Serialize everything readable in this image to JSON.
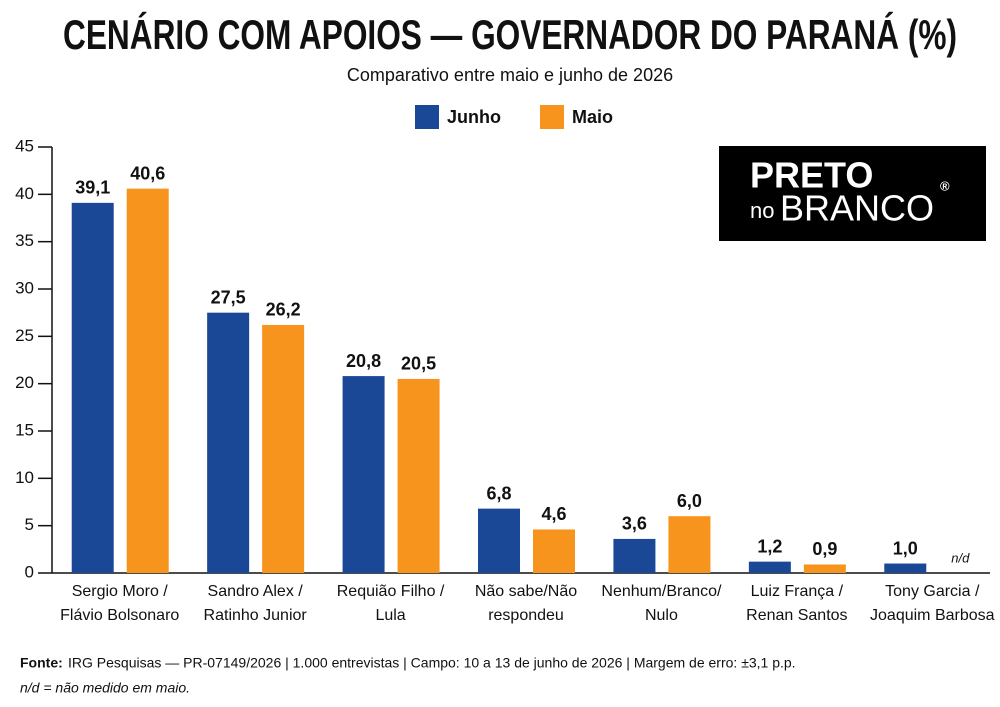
{
  "chart_data": {
    "type": "bar",
    "title": "CENÁRIO COM APOIOS — GOVERNADOR DO PARANÁ (%)",
    "subtitle": "Comparativo entre maio e junho de 2026",
    "categories": [
      [
        "Sergio Moro /",
        "Flávio Bolsonaro"
      ],
      [
        "Sandro Alex /",
        "Ratinho Junior"
      ],
      [
        "Requião Filho /",
        "Lula"
      ],
      [
        "Não sabe/Não",
        "respondeu"
      ],
      [
        "Nenhum/Branco/",
        "Nulo"
      ],
      [
        "Luiz França /",
        "Renan Santos"
      ],
      [
        "Tony Garcia /",
        "Joaquim Barbosa"
      ]
    ],
    "series": [
      {
        "name": "Junho",
        "color": "#1b4896",
        "values": [
          39.1,
          27.5,
          20.8,
          6.8,
          3.6,
          1.2,
          1.0
        ],
        "value_labels": [
          "39,1",
          "27,5",
          "20,8",
          "6,8",
          "3,6",
          "1,2",
          "1,0"
        ]
      },
      {
        "name": "Maio",
        "color": "#f7941d",
        "values": [
          40.6,
          26.2,
          20.5,
          4.6,
          6.0,
          0.9,
          null
        ],
        "value_labels": [
          "40,6",
          "26,2",
          "20,5",
          "4,6",
          "6,0",
          "0,9",
          "n/d"
        ]
      }
    ],
    "ylim": [
      0,
      45
    ],
    "yticks": [
      0,
      5,
      10,
      15,
      20,
      25,
      30,
      35,
      40,
      45
    ],
    "grid": false,
    "legend": "top"
  },
  "logo": {
    "line1": "PRETO",
    "small": "no",
    "line2": "BRANCO",
    "mark": "®"
  },
  "footer": {
    "source_label": "Fonte:",
    "source": "IRG Pesquisas — PR-07149/2026  |  1.000 entrevistas  |  Campo: 10 a 13 de junho de 2026  |  Margem de erro: ±3,1 p.p.",
    "note": "n/d = não medido em maio."
  }
}
